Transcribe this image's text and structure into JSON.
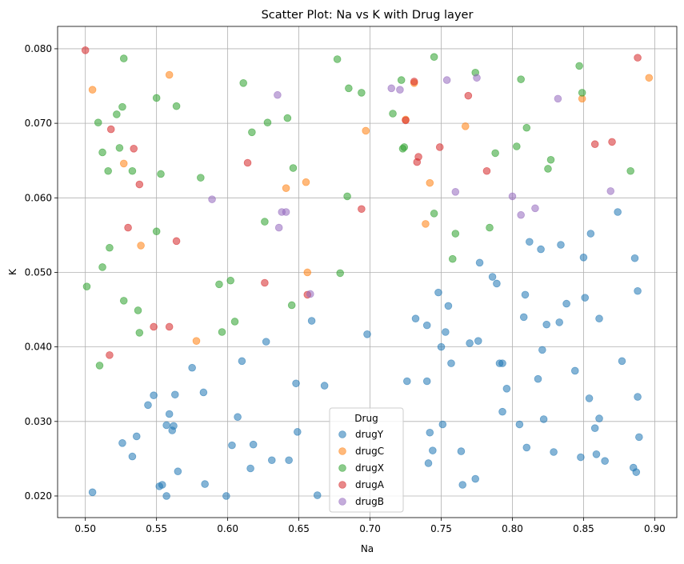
{
  "chart_data": {
    "type": "scatter",
    "title": "Scatter Plot: Na vs K with Drug layer",
    "xlabel": "Na",
    "ylabel": "K",
    "xlim": [
      0.4805,
      0.9155
    ],
    "ylim": [
      0.0171,
      0.083
    ],
    "xticks": [
      "0.50",
      "0.55",
      "0.60",
      "0.65",
      "0.70",
      "0.75",
      "0.80",
      "0.85",
      "0.90"
    ],
    "yticks": [
      "0.020",
      "0.030",
      "0.040",
      "0.050",
      "0.060",
      "0.070",
      "0.080"
    ],
    "grid": true,
    "legend": {
      "title": "Drug",
      "placement": "lower-center"
    },
    "series": [
      {
        "name": "drugY",
        "color": "#1f77b4",
        "points": [
          [
            0.505,
            0.0205
          ],
          [
            0.526,
            0.0271
          ],
          [
            0.533,
            0.0253
          ],
          [
            0.536,
            0.028
          ],
          [
            0.544,
            0.0322
          ],
          [
            0.548,
            0.0335
          ],
          [
            0.552,
            0.0213
          ],
          [
            0.554,
            0.0215
          ],
          [
            0.557,
            0.02
          ],
          [
            0.557,
            0.0295
          ],
          [
            0.559,
            0.031
          ],
          [
            0.561,
            0.0288
          ],
          [
            0.562,
            0.0294
          ],
          [
            0.563,
            0.0336
          ],
          [
            0.565,
            0.0233
          ],
          [
            0.575,
            0.0372
          ],
          [
            0.583,
            0.0339
          ],
          [
            0.584,
            0.0216
          ],
          [
            0.599,
            0.02
          ],
          [
            0.603,
            0.0268
          ],
          [
            0.607,
            0.0306
          ],
          [
            0.61,
            0.0381
          ],
          [
            0.616,
            0.0237
          ],
          [
            0.618,
            0.0269
          ],
          [
            0.627,
            0.0407
          ],
          [
            0.631,
            0.0248
          ],
          [
            0.643,
            0.0248
          ],
          [
            0.648,
            0.0351
          ],
          [
            0.649,
            0.0286
          ],
          [
            0.659,
            0.0435
          ],
          [
            0.663,
            0.0201
          ],
          [
            0.668,
            0.0348
          ],
          [
            0.698,
            0.0417
          ],
          [
            0.726,
            0.0354
          ],
          [
            0.732,
            0.0438
          ],
          [
            0.74,
            0.0354
          ],
          [
            0.74,
            0.0429
          ],
          [
            0.741,
            0.0244
          ],
          [
            0.742,
            0.0285
          ],
          [
            0.744,
            0.0261
          ],
          [
            0.748,
            0.0473
          ],
          [
            0.75,
            0.04
          ],
          [
            0.751,
            0.0296
          ],
          [
            0.753,
            0.042
          ],
          [
            0.755,
            0.0455
          ],
          [
            0.757,
            0.0378
          ],
          [
            0.764,
            0.026
          ],
          [
            0.765,
            0.0215
          ],
          [
            0.77,
            0.0405
          ],
          [
            0.774,
            0.0223
          ],
          [
            0.776,
            0.0408
          ],
          [
            0.777,
            0.0513
          ],
          [
            0.786,
            0.0494
          ],
          [
            0.789,
            0.0485
          ],
          [
            0.791,
            0.0378
          ],
          [
            0.793,
            0.0378
          ],
          [
            0.793,
            0.0313
          ],
          [
            0.796,
            0.0344
          ],
          [
            0.805,
            0.0296
          ],
          [
            0.808,
            0.044
          ],
          [
            0.809,
            0.047
          ],
          [
            0.81,
            0.0265
          ],
          [
            0.812,
            0.0541
          ],
          [
            0.818,
            0.0357
          ],
          [
            0.82,
            0.0531
          ],
          [
            0.821,
            0.0396
          ],
          [
            0.822,
            0.0303
          ],
          [
            0.824,
            0.043
          ],
          [
            0.829,
            0.0259
          ],
          [
            0.833,
            0.0433
          ],
          [
            0.834,
            0.0537
          ],
          [
            0.838,
            0.0458
          ],
          [
            0.844,
            0.0368
          ],
          [
            0.848,
            0.0252
          ],
          [
            0.85,
            0.052
          ],
          [
            0.851,
            0.0466
          ],
          [
            0.854,
            0.0331
          ],
          [
            0.855,
            0.0552
          ],
          [
            0.858,
            0.0291
          ],
          [
            0.859,
            0.0256
          ],
          [
            0.861,
            0.0438
          ],
          [
            0.861,
            0.0304
          ],
          [
            0.865,
            0.0247
          ],
          [
            0.874,
            0.0581
          ],
          [
            0.877,
            0.0381
          ],
          [
            0.885,
            0.0238
          ],
          [
            0.886,
            0.0519
          ],
          [
            0.887,
            0.0232
          ],
          [
            0.888,
            0.0333
          ],
          [
            0.888,
            0.0475
          ],
          [
            0.889,
            0.0279
          ]
        ]
      },
      {
        "name": "drugC",
        "color": "#ff7f0e",
        "points": [
          [
            0.505,
            0.0745
          ],
          [
            0.527,
            0.0646
          ],
          [
            0.539,
            0.0536
          ],
          [
            0.559,
            0.0765
          ],
          [
            0.578,
            0.0408
          ],
          [
            0.641,
            0.0613
          ],
          [
            0.655,
            0.0621
          ],
          [
            0.656,
            0.05
          ],
          [
            0.697,
            0.069
          ],
          [
            0.725,
            0.0705
          ],
          [
            0.731,
            0.0754
          ],
          [
            0.739,
            0.0565
          ],
          [
            0.742,
            0.062
          ],
          [
            0.767,
            0.0696
          ],
          [
            0.849,
            0.0733
          ],
          [
            0.896,
            0.0761
          ]
        ]
      },
      {
        "name": "drugX",
        "color": "#2ca02c",
        "points": [
          [
            0.501,
            0.0481
          ],
          [
            0.509,
            0.0701
          ],
          [
            0.51,
            0.0375
          ],
          [
            0.512,
            0.0661
          ],
          [
            0.512,
            0.0507
          ],
          [
            0.516,
            0.0636
          ],
          [
            0.517,
            0.0533
          ],
          [
            0.522,
            0.0712
          ],
          [
            0.524,
            0.0667
          ],
          [
            0.526,
            0.0722
          ],
          [
            0.527,
            0.0787
          ],
          [
            0.527,
            0.0462
          ],
          [
            0.533,
            0.0636
          ],
          [
            0.537,
            0.0449
          ],
          [
            0.538,
            0.0419
          ],
          [
            0.55,
            0.0734
          ],
          [
            0.55,
            0.0555
          ],
          [
            0.553,
            0.0632
          ],
          [
            0.564,
            0.0723
          ],
          [
            0.581,
            0.0627
          ],
          [
            0.594,
            0.0484
          ],
          [
            0.596,
            0.042
          ],
          [
            0.602,
            0.0489
          ],
          [
            0.605,
            0.0434
          ],
          [
            0.611,
            0.0754
          ],
          [
            0.617,
            0.0688
          ],
          [
            0.626,
            0.0568
          ],
          [
            0.628,
            0.0701
          ],
          [
            0.642,
            0.0707
          ],
          [
            0.645,
            0.0456
          ],
          [
            0.646,
            0.064
          ],
          [
            0.677,
            0.0786
          ],
          [
            0.679,
            0.0499
          ],
          [
            0.684,
            0.0602
          ],
          [
            0.685,
            0.0747
          ],
          [
            0.694,
            0.0741
          ],
          [
            0.716,
            0.0713
          ],
          [
            0.722,
            0.0758
          ],
          [
            0.723,
            0.0666
          ],
          [
            0.724,
            0.0668
          ],
          [
            0.745,
            0.0789
          ],
          [
            0.745,
            0.0579
          ],
          [
            0.758,
            0.0518
          ],
          [
            0.76,
            0.0552
          ],
          [
            0.774,
            0.0768
          ],
          [
            0.784,
            0.056
          ],
          [
            0.788,
            0.066
          ],
          [
            0.803,
            0.0669
          ],
          [
            0.806,
            0.0759
          ],
          [
            0.81,
            0.0694
          ],
          [
            0.825,
            0.0639
          ],
          [
            0.827,
            0.0651
          ],
          [
            0.847,
            0.0777
          ],
          [
            0.849,
            0.0741
          ],
          [
            0.883,
            0.0636
          ]
        ]
      },
      {
        "name": "drugA",
        "color": "#d62728",
        "points": [
          [
            0.5,
            0.0798
          ],
          [
            0.517,
            0.0389
          ],
          [
            0.518,
            0.0692
          ],
          [
            0.53,
            0.056
          ],
          [
            0.534,
            0.0666
          ],
          [
            0.538,
            0.0618
          ],
          [
            0.548,
            0.0427
          ],
          [
            0.559,
            0.0427
          ],
          [
            0.564,
            0.0542
          ],
          [
            0.614,
            0.0647
          ],
          [
            0.626,
            0.0486
          ],
          [
            0.656,
            0.047
          ],
          [
            0.694,
            0.0585
          ],
          [
            0.725,
            0.0704
          ],
          [
            0.731,
            0.0756
          ],
          [
            0.733,
            0.0648
          ],
          [
            0.734,
            0.0655
          ],
          [
            0.749,
            0.0668
          ],
          [
            0.769,
            0.0737
          ],
          [
            0.782,
            0.0636
          ],
          [
            0.858,
            0.0672
          ],
          [
            0.87,
            0.0675
          ],
          [
            0.888,
            0.0788
          ]
        ]
      },
      {
        "name": "drugB",
        "color": "#9467bd",
        "points": [
          [
            0.589,
            0.0598
          ],
          [
            0.635,
            0.0738
          ],
          [
            0.636,
            0.056
          ],
          [
            0.638,
            0.0581
          ],
          [
            0.641,
            0.0581
          ],
          [
            0.658,
            0.0471
          ],
          [
            0.715,
            0.0747
          ],
          [
            0.721,
            0.0745
          ],
          [
            0.754,
            0.0758
          ],
          [
            0.76,
            0.0608
          ],
          [
            0.775,
            0.0761
          ],
          [
            0.8,
            0.0602
          ],
          [
            0.806,
            0.0577
          ],
          [
            0.816,
            0.0586
          ],
          [
            0.832,
            0.0733
          ],
          [
            0.869,
            0.0609
          ]
        ]
      }
    ]
  }
}
